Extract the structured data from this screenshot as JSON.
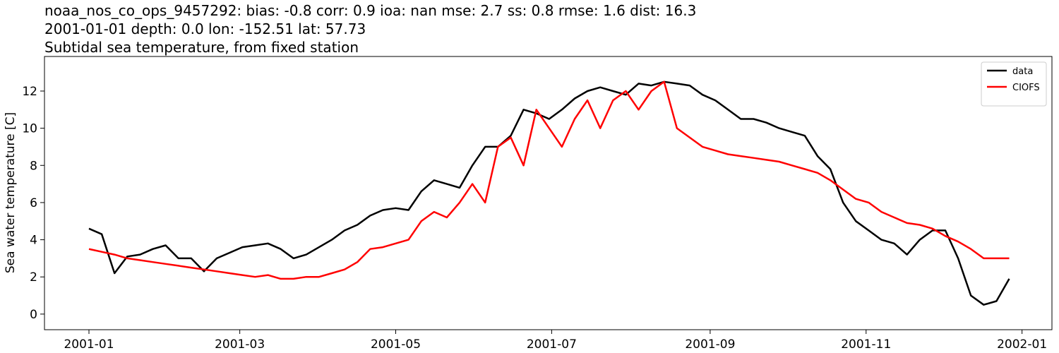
{
  "chart_data": {
    "type": "line",
    "title": [
      "noaa_nos_co_ops_9457292: bias: -0.8  corr: 0.9  ioa: nan  mse: 2.7  ss: 0.8  rmse: 1.6  dist: 16.3",
      "2001-01-01 depth: 0.0 lon: -152.51 lat: 57.73",
      "Subtidal sea temperature, from fixed station"
    ],
    "y_label": "Sea water temperature [C]",
    "x": [
      0,
      5,
      10,
      15,
      20,
      25,
      30,
      35,
      40,
      45,
      50,
      55,
      60,
      65,
      70,
      75,
      80,
      85,
      90,
      95,
      100,
      105,
      110,
      115,
      120,
      125,
      130,
      135,
      140,
      145,
      150,
      155,
      160,
      165,
      170,
      175,
      180,
      185,
      190,
      195,
      200,
      205,
      210,
      215,
      220,
      225,
      230,
      235,
      240,
      245,
      250,
      255,
      260,
      265,
      270,
      275,
      280,
      285,
      290,
      295,
      300,
      305,
      310,
      315,
      320,
      325,
      330,
      335,
      340,
      345,
      350,
      355,
      360
    ],
    "series": [
      {
        "name": "data",
        "color": "#000000",
        "values": [
          4.6,
          4.3,
          2.2,
          3.1,
          3.2,
          3.5,
          3.7,
          3.0,
          3.0,
          2.3,
          3.0,
          3.3,
          3.6,
          3.7,
          3.8,
          3.5,
          3.0,
          3.2,
          3.6,
          4.0,
          4.5,
          4.8,
          5.3,
          5.6,
          5.7,
          5.6,
          6.6,
          7.2,
          7.0,
          6.8,
          8.0,
          9.0,
          9.0,
          9.6,
          11.0,
          10.8,
          10.5,
          11.0,
          11.6,
          12.0,
          12.2,
          12.0,
          11.8,
          12.4,
          12.3,
          12.5,
          12.4,
          12.3,
          11.8,
          11.5,
          11.0,
          10.5,
          10.5,
          10.3,
          10.0,
          9.8,
          9.6,
          8.5,
          7.8,
          6.0,
          5.0,
          4.5,
          4.0,
          3.8,
          3.2,
          4.0,
          4.5,
          4.5,
          3.0,
          1.0,
          0.5,
          0.7,
          1.9
        ]
      },
      {
        "name": "CIOFS",
        "color": "#ff0000",
        "values": [
          3.5,
          3.35,
          3.2,
          3.0,
          2.9,
          2.8,
          2.7,
          2.6,
          2.5,
          2.4,
          2.3,
          2.2,
          2.1,
          2.0,
          2.1,
          1.9,
          1.9,
          2.0,
          2.0,
          2.2,
          2.4,
          2.8,
          3.5,
          3.6,
          3.8,
          4.0,
          5.0,
          5.5,
          5.2,
          6.0,
          7.0,
          6.0,
          9.0,
          9.5,
          8.0,
          11.0,
          10.0,
          9.0,
          10.5,
          11.5,
          10.0,
          11.5,
          12.0,
          11.0,
          12.0,
          12.5,
          10.0,
          9.5,
          9.0,
          8.8,
          8.6,
          8.5,
          8.4,
          8.3,
          8.2,
          8.0,
          7.8,
          7.6,
          7.2,
          6.7,
          6.2,
          6.0,
          5.5,
          5.2,
          4.9,
          4.8,
          4.6,
          4.2,
          3.9,
          3.5,
          3.0,
          3.0,
          3.0
        ]
      }
    ],
    "xlim": [
      -17.4,
      376.7
    ],
    "xticks": [
      {
        "value": 0,
        "label": "2001-01"
      },
      {
        "value": 59,
        "label": "2001-03"
      },
      {
        "value": 120,
        "label": "2001-05"
      },
      {
        "value": 181,
        "label": "2001-07"
      },
      {
        "value": 243,
        "label": "2001-09"
      },
      {
        "value": 304,
        "label": "2001-11"
      },
      {
        "value": 365,
        "label": "2002-01"
      }
    ],
    "ylim": [
      -0.84,
      13.86
    ],
    "yticks": [
      0,
      2,
      4,
      6,
      8,
      10,
      12
    ],
    "grid": false,
    "legend": "upper right"
  }
}
